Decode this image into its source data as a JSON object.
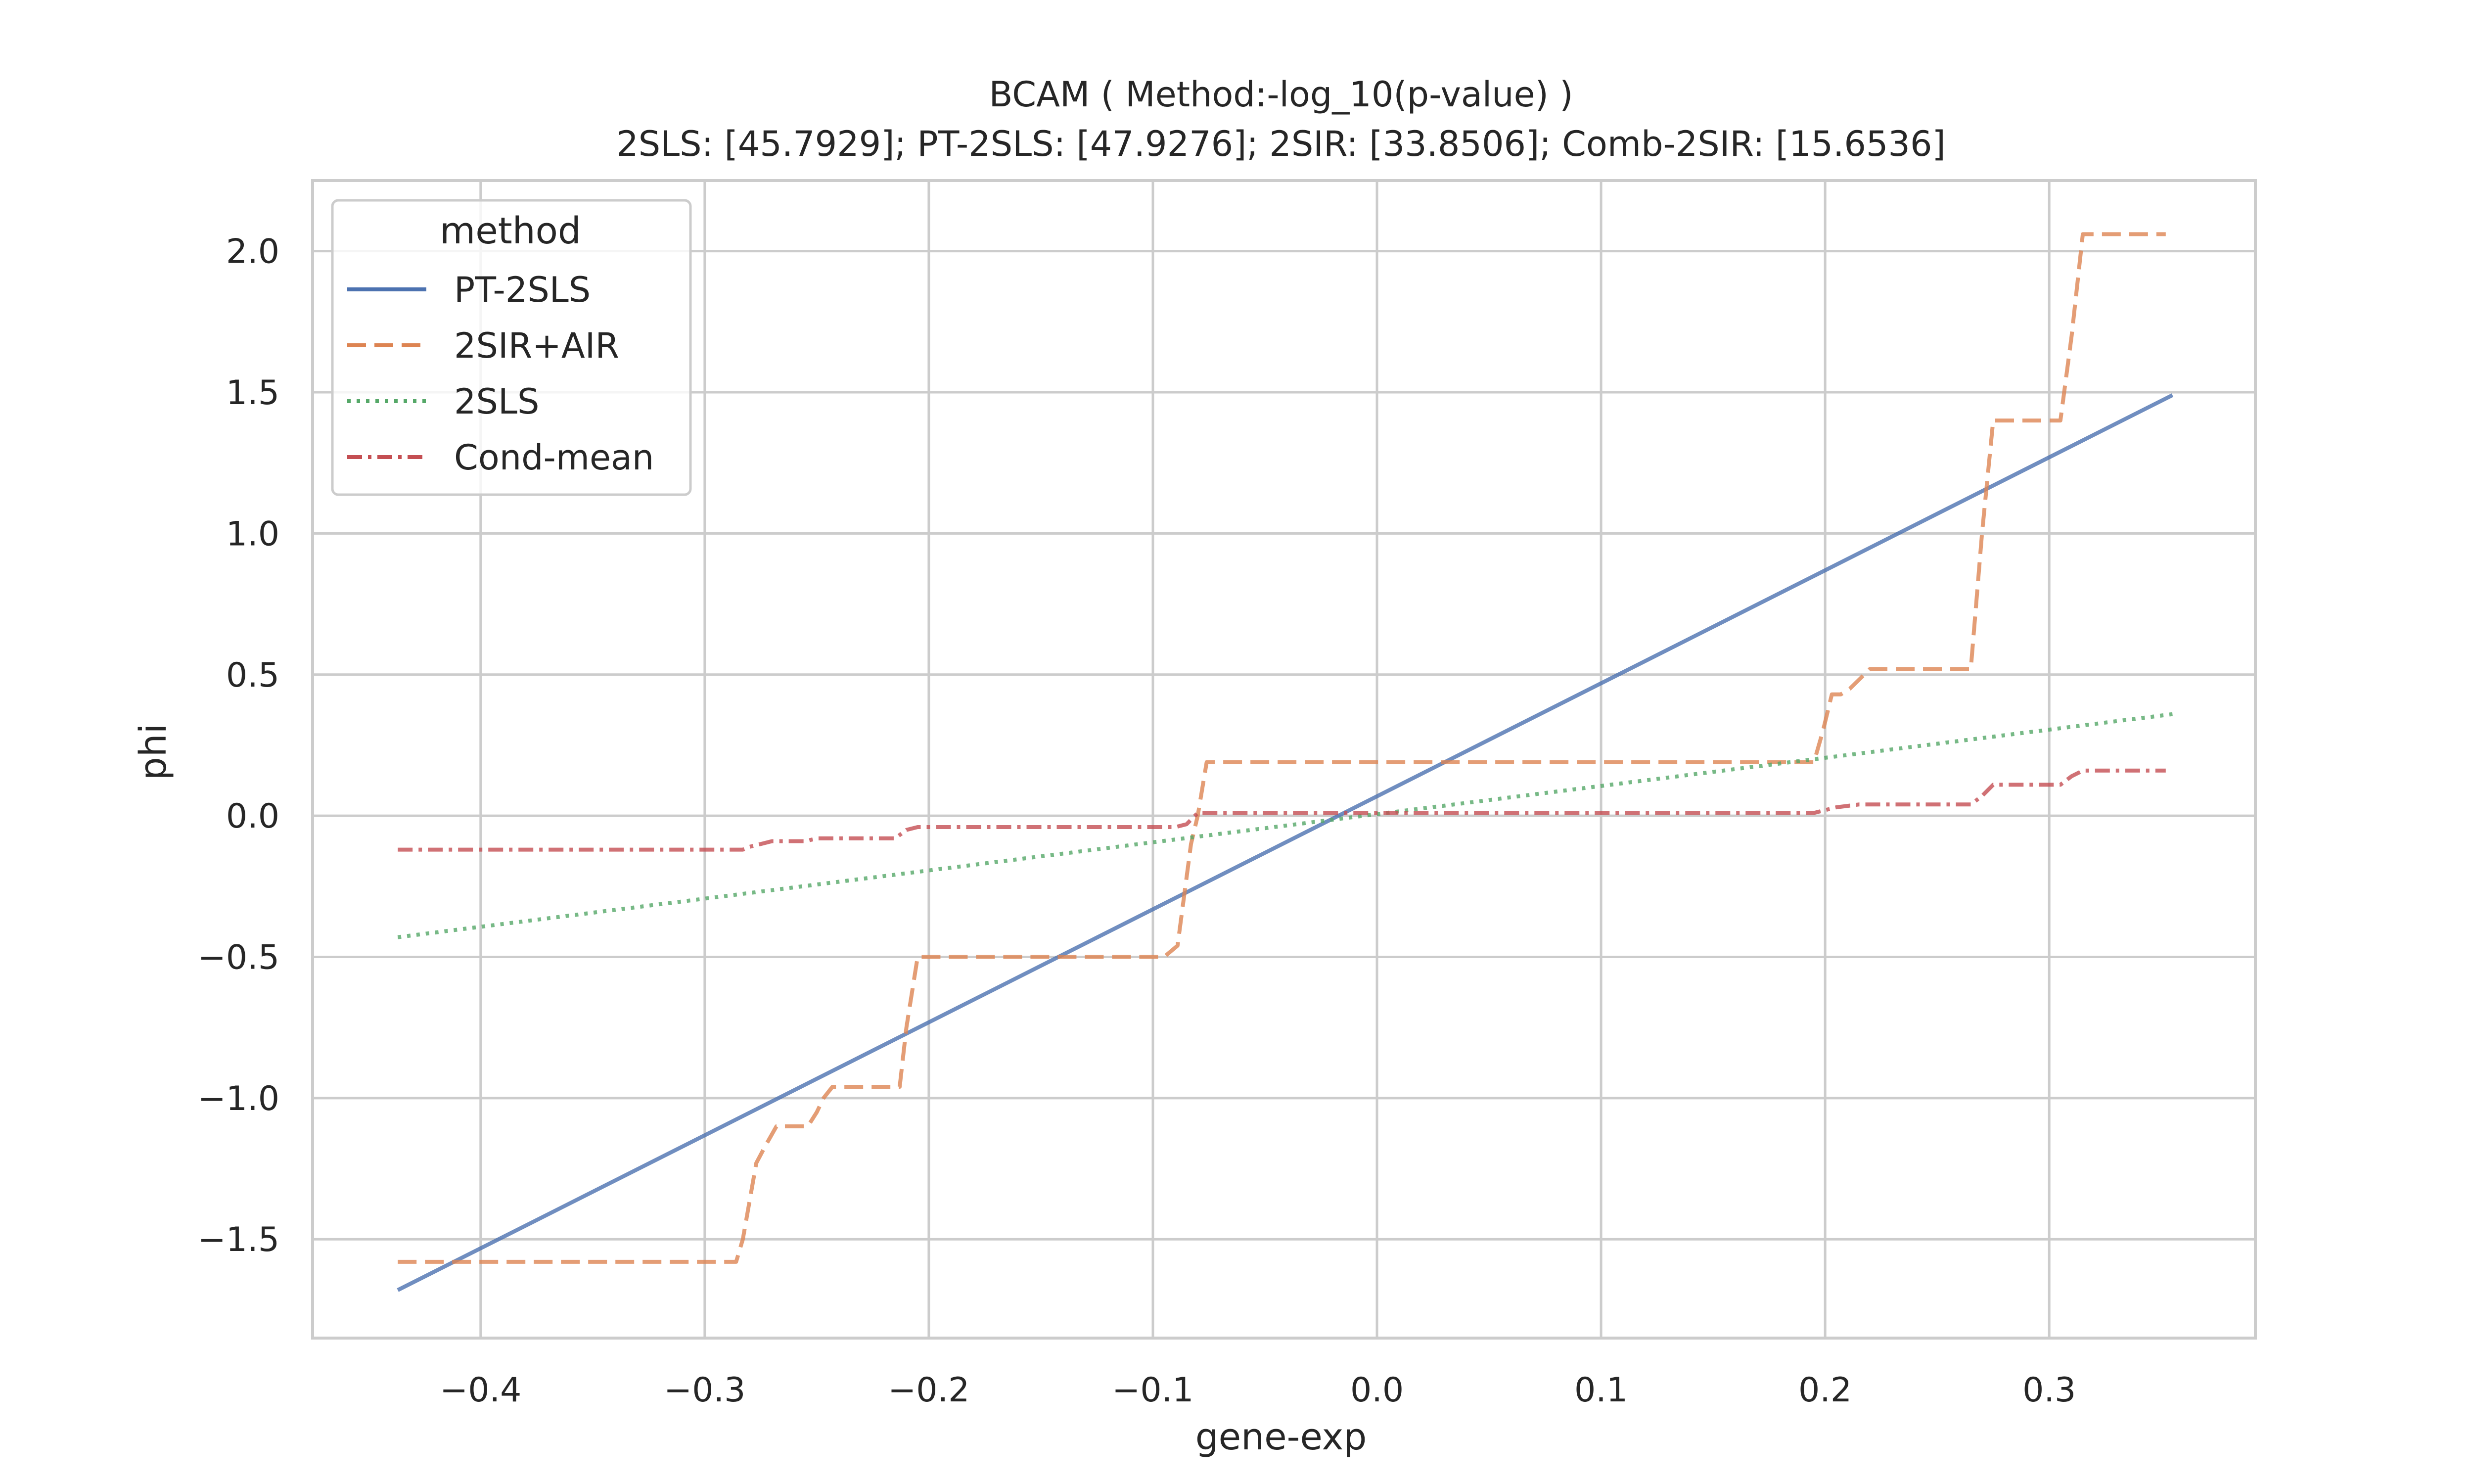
{
  "chart_data": {
    "type": "line",
    "title": "BCAM ( Method:-log_10(p-value) )",
    "subtitle": "2SLS: [45.7929]; PT-2SLS: [47.9276]; 2SIR: [33.8506]; Comb-2SIR: [15.6536]",
    "xlabel": "gene-exp",
    "ylabel": "phi",
    "xlim": [
      -0.475,
      0.392
    ],
    "ylim": [
      -1.85,
      2.25
    ],
    "xticks": [
      -0.4,
      -0.3,
      -0.2,
      -0.1,
      0.0,
      0.1,
      0.2,
      0.3
    ],
    "xtick_labels": [
      "−0.4",
      "−0.3",
      "−0.2",
      "−0.1",
      "0.0",
      "0.1",
      "0.2",
      "0.3"
    ],
    "yticks": [
      -1.5,
      -1.0,
      -0.5,
      0.0,
      0.5,
      1.0,
      1.5,
      2.0
    ],
    "ytick_labels": [
      "−1.5",
      "−1.0",
      "−0.5",
      "0.0",
      "0.5",
      "1.0",
      "1.5",
      "2.0"
    ],
    "grid": true,
    "legend": {
      "title": "method",
      "position": "upper-left"
    },
    "series": [
      {
        "name": "PT-2SLS",
        "color": "#4c72b0",
        "dash": "solid",
        "x": [
          -0.437,
          0.355
        ],
        "y": [
          -1.68,
          1.49
        ]
      },
      {
        "name": "2SIR+AIR",
        "color": "#dd8452",
        "dash": "dashed",
        "x": [
          -0.437,
          -0.286,
          -0.283,
          -0.277,
          -0.273,
          -0.268,
          -0.254,
          -0.25,
          -0.247,
          -0.243,
          -0.213,
          -0.21,
          -0.205,
          -0.095,
          -0.089,
          -0.083,
          -0.08,
          -0.076,
          0.195,
          0.199,
          0.203,
          0.207,
          0.211,
          0.22,
          0.265,
          0.27,
          0.275,
          0.305,
          0.31,
          0.315,
          0.352
        ],
        "y": [
          -1.58,
          -1.58,
          -1.5,
          -1.23,
          -1.17,
          -1.1,
          -1.1,
          -1.05,
          -1.0,
          -0.96,
          -0.96,
          -0.75,
          -0.5,
          -0.5,
          -0.46,
          -0.1,
          0.0,
          0.19,
          0.19,
          0.3,
          0.43,
          0.43,
          0.45,
          0.52,
          0.52,
          1.0,
          1.4,
          1.4,
          1.7,
          2.06,
          2.06
        ]
      },
      {
        "name": "2SLS",
        "color": "#55a868",
        "dash": "dotted",
        "x": [
          -0.437,
          0.355
        ],
        "y": [
          -0.43,
          0.36
        ]
      },
      {
        "name": "Cond-mean",
        "color": "#c44e52",
        "dash": "dashdot",
        "x": [
          -0.437,
          -0.283,
          -0.28,
          -0.275,
          -0.27,
          -0.26,
          -0.255,
          -0.25,
          -0.245,
          -0.215,
          -0.21,
          -0.205,
          -0.09,
          -0.085,
          -0.08,
          -0.075,
          0.195,
          0.2,
          0.205,
          0.215,
          0.265,
          0.27,
          0.275,
          0.305,
          0.31,
          0.315,
          0.352
        ],
        "y": [
          -0.12,
          -0.12,
          -0.11,
          -0.1,
          -0.09,
          -0.09,
          -0.09,
          -0.08,
          -0.08,
          -0.08,
          -0.05,
          -0.04,
          -0.04,
          -0.03,
          0.01,
          0.01,
          0.01,
          0.02,
          0.03,
          0.04,
          0.04,
          0.07,
          0.11,
          0.11,
          0.14,
          0.16,
          0.16
        ]
      }
    ]
  }
}
